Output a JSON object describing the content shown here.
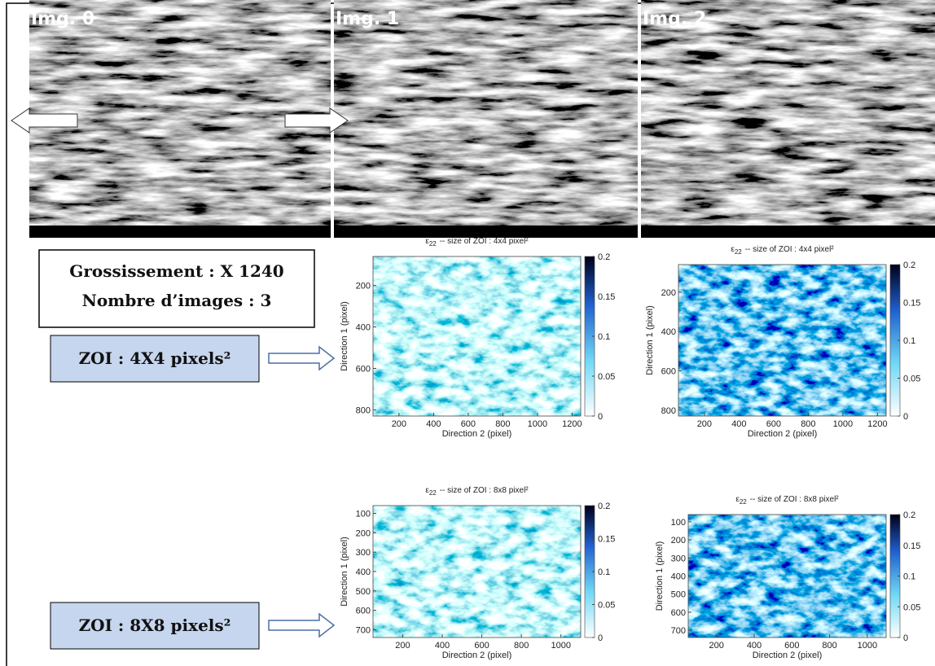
{
  "images": [
    {
      "label": "Img. 0"
    },
    {
      "label": "Img. 1"
    },
    {
      "label": "Img. 2"
    }
  ],
  "info_box": {
    "lines": [
      "Grossissement : X 1240",
      "Nombre d’images : 3"
    ]
  },
  "zoi_labels": [
    "ZOI : 4X4 pixels²",
    "ZOI : 8X8 pixels²"
  ],
  "panels": [
    {
      "title_symbol": "ε",
      "title_subscript": "22",
      "title_text": "-- size of ZOI : 4x4 pixel²",
      "xlabel": "Direction 2 (pixel)",
      "ylabel": "Direction 1 (pixel)",
      "xlim": [
        50,
        1250
      ],
      "xticks": [
        200,
        400,
        600,
        800,
        1000,
        1200
      ],
      "ylim": [
        60,
        830
      ],
      "yticks": [
        200,
        400,
        600,
        800
      ],
      "clim": [
        0,
        0.2
      ],
      "cticks": [
        0,
        0.05,
        0.1,
        0.15,
        0.2
      ]
    },
    {
      "title_symbol": "ε",
      "title_subscript": "22",
      "title_text": "-- size of ZOI : 4x4 pixel²",
      "xlabel": "Direction 2 (pixel)",
      "ylabel": "Direction 1 (pixel)",
      "xlim": [
        50,
        1250
      ],
      "xticks": [
        200,
        400,
        600,
        800,
        1000,
        1200
      ],
      "ylim": [
        60,
        830
      ],
      "yticks": [
        200,
        400,
        600,
        800
      ],
      "clim": [
        0,
        0.2
      ],
      "cticks": [
        0,
        0.05,
        0.1,
        0.15,
        0.2
      ]
    },
    {
      "title_symbol": "ε",
      "title_subscript": "22",
      "title_text": "-- size of ZOI : 8x8 pixel²",
      "xlabel": "Direction 2 (pixel)",
      "ylabel": "Direction 1 (pixel)",
      "xlim": [
        50,
        1100
      ],
      "xticks": [
        200,
        400,
        600,
        800,
        1000
      ],
      "ylim": [
        60,
        740
      ],
      "yticks": [
        100,
        200,
        300,
        400,
        500,
        600,
        700
      ],
      "clim": [
        0,
        0.2
      ],
      "cticks": [
        0,
        0.05,
        0.1,
        0.15,
        0.2
      ]
    },
    {
      "title_symbol": "ε",
      "title_subscript": "22",
      "title_text": "-- size of ZOI : 8x8 pixel²",
      "xlabel": "Direction 2 (pixel)",
      "ylabel": "Direction 1 (pixel)",
      "xlim": [
        50,
        1100
      ],
      "xticks": [
        200,
        400,
        600,
        800,
        1000
      ],
      "ylim": [
        60,
        740
      ],
      "yticks": [
        100,
        200,
        300,
        400,
        500,
        600,
        700
      ],
      "clim": [
        0,
        0.2
      ],
      "cticks": [
        0,
        0.05,
        0.1,
        0.15,
        0.2
      ]
    }
  ]
}
